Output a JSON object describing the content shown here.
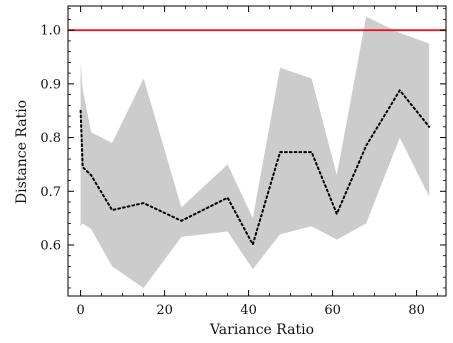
{
  "chart_data": {
    "type": "line",
    "title": "",
    "xlabel": "Variance Ratio",
    "ylabel": "Distance Ratio",
    "xlim": [
      -3,
      87
    ],
    "ylim": [
      0.505,
      1.045
    ],
    "xticks": [
      0,
      20,
      40,
      60,
      80
    ],
    "yticks": [
      0.6,
      0.7,
      0.8,
      0.9,
      1.0
    ],
    "xtick_labels": [
      "0",
      "20",
      "40",
      "60",
      "80"
    ],
    "ytick_labels": [
      "0.6",
      "0.7",
      "0.8",
      "0.9",
      "1.0"
    ],
    "grid": false,
    "reference_line": {
      "y": 1.0,
      "color": "#e41a1c"
    },
    "band": {
      "color": "#cccccc",
      "x": [
        0,
        0.5,
        2.5,
        7.5,
        15,
        24,
        35,
        41,
        47.5,
        55,
        61,
        68,
        76,
        83
      ],
      "upper": [
        0.94,
        0.89,
        0.81,
        0.79,
        0.91,
        0.67,
        0.75,
        0.65,
        0.93,
        0.91,
        0.73,
        1.025,
        0.995,
        0.975
      ],
      "lower": [
        0.635,
        0.64,
        0.63,
        0.56,
        0.52,
        0.615,
        0.625,
        0.555,
        0.62,
        0.635,
        0.61,
        0.64,
        0.8,
        0.69
      ]
    },
    "series": [
      {
        "style": "dotted",
        "color": "#000000",
        "x": [
          0,
          0.5,
          2.5,
          7.5,
          15,
          24,
          35,
          41,
          47.5,
          55,
          61,
          68,
          76,
          83
        ],
        "values": [
          0.85,
          0.745,
          0.73,
          0.665,
          0.678,
          0.645,
          0.688,
          0.601,
          0.773,
          0.773,
          0.658,
          0.785,
          0.888,
          0.82
        ]
      }
    ]
  }
}
